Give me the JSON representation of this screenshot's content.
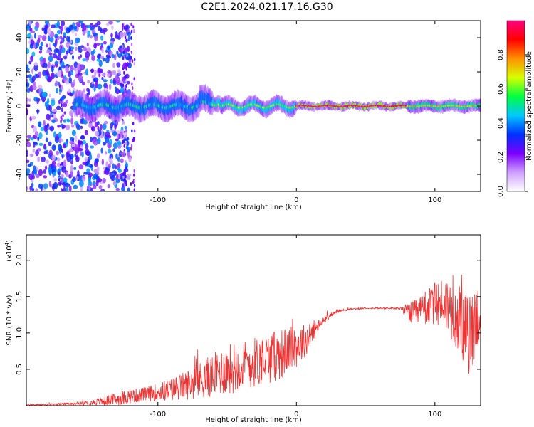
{
  "figure_title": "C2E1.2024.021.17.16.G30",
  "chart_data": [
    {
      "type": "heatmap",
      "title": "",
      "xlabel": "Height of straight line (km)",
      "ylabel": "Frequency (Hz)",
      "xlim": [
        -195,
        133
      ],
      "ylim": [
        -50,
        50
      ],
      "xticks": [
        -100,
        0,
        100
      ],
      "yticks": [
        -40,
        -20,
        0,
        20,
        40
      ],
      "colorbar": {
        "label": "Normalized spectral amplitude",
        "range": [
          0,
          1
        ],
        "ticks": [
          "0.0",
          "0.2",
          "0.4",
          "0.6",
          "0.8"
        ],
        "colors": [
          "#ffffff",
          "#cfa0ff",
          "#7a00ff",
          "#0030ff",
          "#00c8ff",
          "#00ff40",
          "#d8ff00",
          "#ff9000",
          "#ff0000",
          "#ff0080"
        ]
      },
      "ridge_frequency_hz": 0,
      "ridge_segments": [
        {
          "x_from": -160,
          "x_to": -60,
          "level": 0.45
        },
        {
          "x_from": -60,
          "x_to": 0,
          "level": 0.6
        },
        {
          "x_from": 0,
          "x_to": 80,
          "level": 0.95
        },
        {
          "x_from": 80,
          "x_to": 133,
          "level": 0.7
        }
      ]
    },
    {
      "type": "line",
      "title": "",
      "xlabel": "Height of straight line (km)",
      "ylabel": "SNR (10 * v/v)",
      "scale_note": "(x10",
      "scale_exp": "4",
      "scale_close": ")",
      "xlim": [
        -195,
        133
      ],
      "ylim": [
        0,
        2.35
      ],
      "xticks": [
        -100,
        0,
        100
      ],
      "yticks": [
        "0.5",
        "1.0",
        "1.5",
        "2.0"
      ],
      "line_color": "#ee3333",
      "series": [
        {
          "x": [
            -195,
            -180,
            -160,
            -150,
            -140,
            -130,
            -120,
            -110,
            -100,
            -90,
            -80,
            -70,
            -60,
            -50,
            -40,
            -30,
            -20,
            -10,
            -5,
            0,
            5,
            10,
            15,
            20,
            25,
            30,
            40,
            50,
            60,
            70,
            75,
            80,
            85,
            90,
            95,
            100,
            105,
            110,
            115,
            120,
            125,
            130,
            133
          ],
          "y": [
            0.01,
            0.015,
            0.025,
            0.04,
            0.06,
            0.09,
            0.13,
            0.15,
            0.19,
            0.22,
            0.28,
            0.35,
            0.42,
            0.5,
            0.55,
            0.6,
            0.65,
            0.72,
            0.78,
            0.82,
            0.88,
            0.97,
            1.08,
            1.18,
            1.25,
            1.3,
            1.33,
            1.34,
            1.34,
            1.34,
            1.34,
            1.3,
            1.25,
            1.3,
            1.35,
            1.4,
            1.42,
            1.38,
            1.25,
            1.1,
            0.95,
            1.2,
            1.3
          ],
          "noise": [
            0.01,
            0.01,
            0.02,
            0.03,
            0.06,
            0.09,
            0.1,
            0.1,
            0.12,
            0.16,
            0.2,
            0.25,
            0.3,
            0.35,
            0.35,
            0.35,
            0.35,
            0.35,
            0.3,
            0.3,
            0.25,
            0.2,
            0.1,
            0.05,
            0.03,
            0.02,
            0.01,
            0.01,
            0.01,
            0.01,
            0.02,
            0.1,
            0.2,
            0.22,
            0.25,
            0.3,
            0.35,
            0.4,
            0.45,
            0.5,
            0.55,
            0.5,
            0.45
          ]
        }
      ]
    }
  ]
}
